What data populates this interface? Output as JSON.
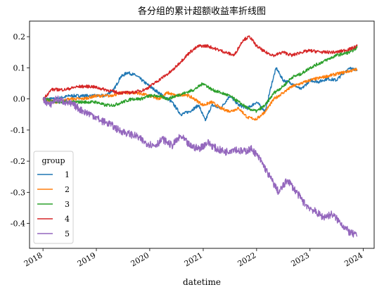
{
  "chart_data": {
    "type": "line",
    "title": "各分组的累计超额收益率折线图",
    "xlabel": "datetime",
    "ylabel": "",
    "xlim": [
      "2017-10-01",
      "2024-03-15"
    ],
    "ylim": [
      -0.48,
      0.25
    ],
    "grid": false,
    "legend": {
      "title": "group",
      "placement": "lower-left"
    },
    "x_ticks": [
      "2018",
      "2019",
      "2020",
      "2021",
      "2022",
      "2023",
      "2024"
    ],
    "y_ticks": [
      0.2,
      0.1,
      0.0,
      -0.1,
      -0.2,
      -0.3,
      -0.4
    ],
    "y_tick_labels": [
      "0.2",
      "0.1",
      "0.0",
      "-0.1",
      "-0.2",
      "-0.3",
      "-0.4"
    ],
    "series": [
      {
        "name": "1",
        "color": "#1f77b4",
        "points": [
          [
            "2018-01-02",
            0.0
          ],
          [
            "2018-04-01",
            0.0
          ],
          [
            "2018-07-01",
            0.01
          ],
          [
            "2018-10-01",
            0.01
          ],
          [
            "2019-01-01",
            0.01
          ],
          [
            "2019-03-01",
            0.01
          ],
          [
            "2019-05-01",
            0.03
          ],
          [
            "2019-06-15",
            0.07
          ],
          [
            "2019-08-01",
            0.085
          ],
          [
            "2019-10-01",
            0.075
          ],
          [
            "2020-01-01",
            0.04
          ],
          [
            "2020-02-01",
            0.03
          ],
          [
            "2020-04-01",
            0.01
          ],
          [
            "2020-06-01",
            -0.01
          ],
          [
            "2020-08-01",
            -0.05
          ],
          [
            "2020-10-01",
            -0.04
          ],
          [
            "2020-12-01",
            -0.02
          ],
          [
            "2021-01-15",
            -0.07
          ],
          [
            "2021-03-01",
            -0.02
          ],
          [
            "2021-05-01",
            -0.03
          ],
          [
            "2021-07-01",
            0.01
          ],
          [
            "2021-09-01",
            -0.02
          ],
          [
            "2021-11-01",
            -0.03
          ],
          [
            "2022-01-01",
            -0.01
          ],
          [
            "2022-03-01",
            -0.04
          ],
          [
            "2022-04-15",
            0.05
          ],
          [
            "2022-05-15",
            0.1
          ],
          [
            "2022-07-01",
            0.06
          ],
          [
            "2022-09-01",
            0.05
          ],
          [
            "2022-11-01",
            0.03
          ],
          [
            "2023-01-01",
            0.06
          ],
          [
            "2023-03-01",
            0.055
          ],
          [
            "2023-05-01",
            0.065
          ],
          [
            "2023-07-01",
            0.06
          ],
          [
            "2023-09-01",
            0.09
          ],
          [
            "2023-10-15",
            0.1
          ],
          [
            "2023-11-20",
            0.09
          ]
        ]
      },
      {
        "name": "2",
        "color": "#ff7f0e",
        "points": [
          [
            "2018-01-02",
            0.0
          ],
          [
            "2018-04-01",
            -0.01
          ],
          [
            "2018-07-01",
            0.0
          ],
          [
            "2018-10-01",
            0.0
          ],
          [
            "2019-01-01",
            0.01
          ],
          [
            "2019-04-01",
            0.01
          ],
          [
            "2019-07-01",
            0.02
          ],
          [
            "2019-10-01",
            0.02
          ],
          [
            "2020-01-01",
            0.01
          ],
          [
            "2020-03-01",
            0.0
          ],
          [
            "2020-05-01",
            0.02
          ],
          [
            "2020-07-01",
            0.01
          ],
          [
            "2020-09-01",
            0.015
          ],
          [
            "2020-11-01",
            0.0
          ],
          [
            "2021-01-01",
            -0.02
          ],
          [
            "2021-03-01",
            -0.01
          ],
          [
            "2021-05-01",
            -0.03
          ],
          [
            "2021-07-01",
            -0.04
          ],
          [
            "2021-09-01",
            -0.03
          ],
          [
            "2021-11-01",
            -0.06
          ],
          [
            "2022-01-01",
            -0.065
          ],
          [
            "2022-03-01",
            -0.04
          ],
          [
            "2022-05-01",
            0.0
          ],
          [
            "2022-07-01",
            0.02
          ],
          [
            "2022-09-01",
            0.04
          ],
          [
            "2022-11-01",
            0.05
          ],
          [
            "2023-01-01",
            0.06
          ],
          [
            "2023-04-01",
            0.07
          ],
          [
            "2023-07-01",
            0.08
          ],
          [
            "2023-10-01",
            0.09
          ],
          [
            "2023-11-20",
            0.095
          ]
        ]
      },
      {
        "name": "3",
        "color": "#2ca02c",
        "points": [
          [
            "2018-01-02",
            0.0
          ],
          [
            "2018-04-01",
            -0.01
          ],
          [
            "2018-07-01",
            -0.01
          ],
          [
            "2018-10-01",
            -0.01
          ],
          [
            "2019-01-01",
            -0.01
          ],
          [
            "2019-03-01",
            -0.02
          ],
          [
            "2019-05-01",
            -0.02
          ],
          [
            "2019-07-01",
            -0.01
          ],
          [
            "2019-09-01",
            0.0
          ],
          [
            "2019-11-01",
            0.0
          ],
          [
            "2020-01-01",
            0.01
          ],
          [
            "2020-03-01",
            0.01
          ],
          [
            "2020-05-01",
            0.0
          ],
          [
            "2020-07-01",
            0.01
          ],
          [
            "2020-09-01",
            0.02
          ],
          [
            "2020-11-01",
            0.03
          ],
          [
            "2021-01-01",
            0.05
          ],
          [
            "2021-03-01",
            0.03
          ],
          [
            "2021-05-01",
            0.02
          ],
          [
            "2021-07-01",
            0.01
          ],
          [
            "2021-09-01",
            -0.01
          ],
          [
            "2021-11-01",
            -0.03
          ],
          [
            "2022-01-01",
            -0.04
          ],
          [
            "2022-03-01",
            -0.02
          ],
          [
            "2022-05-01",
            0.02
          ],
          [
            "2022-07-01",
            0.04
          ],
          [
            "2022-09-01",
            0.07
          ],
          [
            "2022-11-01",
            0.08
          ],
          [
            "2023-01-01",
            0.1
          ],
          [
            "2023-04-01",
            0.12
          ],
          [
            "2023-07-01",
            0.14
          ],
          [
            "2023-10-01",
            0.15
          ],
          [
            "2023-11-20",
            0.165
          ]
        ]
      },
      {
        "name": "4",
        "color": "#d62728",
        "points": [
          [
            "2018-01-02",
            0.0
          ],
          [
            "2018-03-01",
            0.03
          ],
          [
            "2018-06-01",
            0.03
          ],
          [
            "2018-09-01",
            0.04
          ],
          [
            "2018-12-01",
            0.04
          ],
          [
            "2019-03-01",
            0.03
          ],
          [
            "2019-06-01",
            0.02
          ],
          [
            "2019-09-01",
            0.02
          ],
          [
            "2019-12-01",
            0.03
          ],
          [
            "2020-02-01",
            0.05
          ],
          [
            "2020-04-01",
            0.07
          ],
          [
            "2020-06-01",
            0.09
          ],
          [
            "2020-08-01",
            0.12
          ],
          [
            "2020-10-01",
            0.15
          ],
          [
            "2020-12-01",
            0.17
          ],
          [
            "2021-02-01",
            0.17
          ],
          [
            "2021-04-01",
            0.16
          ],
          [
            "2021-06-01",
            0.15
          ],
          [
            "2021-08-01",
            0.14
          ],
          [
            "2021-10-01",
            0.19
          ],
          [
            "2021-11-15",
            0.2
          ],
          [
            "2022-01-01",
            0.17
          ],
          [
            "2022-03-01",
            0.15
          ],
          [
            "2022-05-01",
            0.14
          ],
          [
            "2022-07-01",
            0.15
          ],
          [
            "2022-09-01",
            0.14
          ],
          [
            "2022-11-01",
            0.15
          ],
          [
            "2023-01-01",
            0.155
          ],
          [
            "2023-04-01",
            0.15
          ],
          [
            "2023-07-01",
            0.15
          ],
          [
            "2023-10-01",
            0.16
          ],
          [
            "2023-11-20",
            0.17
          ]
        ]
      },
      {
        "name": "5",
        "color": "#9467bd",
        "points": [
          [
            "2018-01-02",
            0.0
          ],
          [
            "2018-02-15",
            -0.02
          ],
          [
            "2018-04-01",
            0.0
          ],
          [
            "2018-06-01",
            -0.01
          ],
          [
            "2018-08-01",
            -0.02
          ],
          [
            "2018-10-01",
            -0.04
          ],
          [
            "2018-12-01",
            -0.05
          ],
          [
            "2019-02-01",
            -0.07
          ],
          [
            "2019-04-01",
            -0.08
          ],
          [
            "2019-06-01",
            -0.1
          ],
          [
            "2019-08-01",
            -0.11
          ],
          [
            "2019-10-01",
            -0.12
          ],
          [
            "2019-12-01",
            -0.14
          ],
          [
            "2020-02-01",
            -0.15
          ],
          [
            "2020-04-01",
            -0.13
          ],
          [
            "2020-06-01",
            -0.15
          ],
          [
            "2020-08-01",
            -0.12
          ],
          [
            "2020-10-01",
            -0.15
          ],
          [
            "2020-12-01",
            -0.16
          ],
          [
            "2021-02-01",
            -0.14
          ],
          [
            "2021-04-01",
            -0.16
          ],
          [
            "2021-06-01",
            -0.17
          ],
          [
            "2021-08-01",
            -0.16
          ],
          [
            "2021-10-01",
            -0.17
          ],
          [
            "2021-12-01",
            -0.16
          ],
          [
            "2022-02-01",
            -0.2
          ],
          [
            "2022-04-01",
            -0.25
          ],
          [
            "2022-06-01",
            -0.3
          ],
          [
            "2022-08-01",
            -0.26
          ],
          [
            "2022-10-01",
            -0.3
          ],
          [
            "2022-12-01",
            -0.34
          ],
          [
            "2023-02-01",
            -0.36
          ],
          [
            "2023-04-01",
            -0.38
          ],
          [
            "2023-06-01",
            -0.37
          ],
          [
            "2023-08-01",
            -0.4
          ],
          [
            "2023-10-01",
            -0.43
          ],
          [
            "2023-11-20",
            -0.44
          ]
        ]
      }
    ]
  }
}
